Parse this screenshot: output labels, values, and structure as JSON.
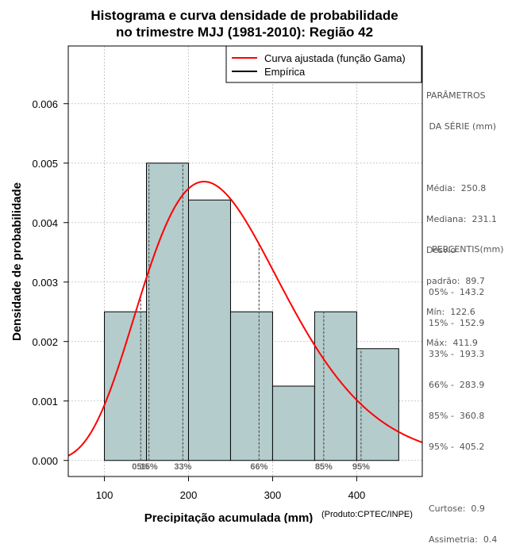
{
  "chart_data": {
    "type": "bar",
    "title_lines": [
      "Histograma e curva densidade de probabilidade",
      "no trimestre MJJ (1981-2010): Região 42"
    ],
    "xlabel": "Precipitação acumulada (mm)",
    "ylabel": "Densidade de probabilidade",
    "credit": "(Produto:CPTEC/INPE)",
    "xlim": [
      57,
      478
    ],
    "ylim": [
      -0.00027,
      0.00697
    ],
    "x_ticks": [
      100,
      200,
      300,
      400
    ],
    "x_tick_labels": [
      "100",
      "200",
      "300",
      "400"
    ],
    "y_ticks": [
      0,
      0.001,
      0.002,
      0.003,
      0.004,
      0.005,
      0.006
    ],
    "y_tick_labels": [
      "0.000",
      "0.001",
      "0.002",
      "0.003",
      "0.004",
      "0.005",
      "0.006"
    ],
    "grid": true,
    "bins": [
      {
        "start": 100,
        "end": 150,
        "density": 0.0025
      },
      {
        "start": 150,
        "end": 200,
        "density": 0.005
      },
      {
        "start": 200,
        "end": 250,
        "density": 0.00438
      },
      {
        "start": 250,
        "end": 300,
        "density": 0.0025
      },
      {
        "start": 300,
        "end": 350,
        "density": 0.00125
      },
      {
        "start": 350,
        "end": 400,
        "density": 0.0025
      },
      {
        "start": 400,
        "end": 450,
        "density": 0.00188
      }
    ],
    "gamma_fit": {
      "shape": 7.759,
      "scale": 32.32
    },
    "percentile_lines": [
      {
        "label": "05%",
        "value": 143.2
      },
      {
        "label": "15%",
        "value": 152.9
      },
      {
        "label": "33%",
        "value": 193.3
      },
      {
        "label": "66%",
        "value": 283.9
      },
      {
        "label": "85%",
        "value": 360.8
      },
      {
        "label": "95%",
        "value": 405.2
      }
    ],
    "legend": [
      {
        "label": "Curva ajustada (função Gama)",
        "color": "#ff0000"
      },
      {
        "label": "Empírica",
        "color": "#000000"
      }
    ],
    "colors": {
      "bar_fill": "#b4cccc",
      "curve": "#ff0000",
      "grid": "#bbbbbb",
      "percentile_line": "#555555"
    }
  },
  "side_panel": {
    "params_title_1": "PARÂMETROS",
    "params_title_2": " DA SÉRIE (mm)",
    "mean": "Média:  250.8",
    "median": "Mediana:  231.1",
    "std_1": "Desvio",
    "std_2": "padrão:  89.7",
    "min": "Mín:  122.6",
    "max": "Máx:  411.9",
    "percentis_title": "PERCENTIS(mm)",
    "p05": "05% -  143.2",
    "p15": "15% -  152.9",
    "p33": "33% -  193.3",
    "p66": "66% -  283.9",
    "p85": "85% -  360.8",
    "p95": "95% -  405.2",
    "kurtosis": "Curtose:  0.9",
    "skewness": "Assimetria:  0.4"
  }
}
